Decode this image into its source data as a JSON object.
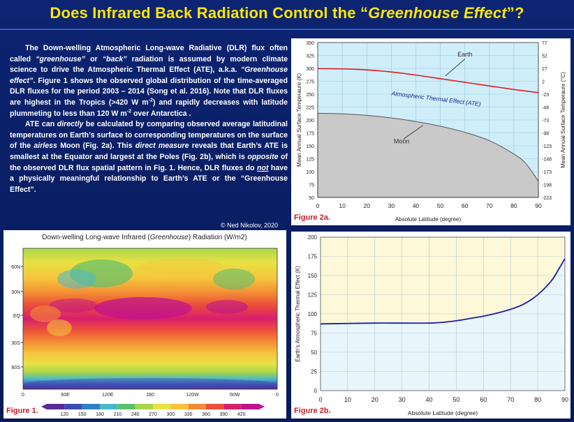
{
  "title": "Does Infrared Back Radiation Control the “Greenhouse Effect”?",
  "title_parts": {
    "a": "Does Infrared Back Radiation Control the “",
    "b": "Greenhouse Effect",
    "c": "”?"
  },
  "text": {
    "p1": [
      {
        "t": "The Down-welling Atmospheric Long-wave Radiative (DLR) flux often called "
      },
      {
        "t": "“greenhouse”",
        "s": "i"
      },
      {
        "t": " or "
      },
      {
        "t": "“back”",
        "s": "i"
      },
      {
        "t": " radiation is assumed by modern climate science to drive the Atmospheric Thermal Effect (ATE), a.k.a. "
      },
      {
        "t": "“Greenhouse effect”",
        "s": "i"
      },
      {
        "t": ". Figure 1 shows the observed global distribution of the time-averaged DLR fluxes for the period 2003 – 2014 (Song et al. 2016). Note that DLR fluxes are highest in the Tropics (>420 W m"
      },
      {
        "t": "-2",
        "s": "sup"
      },
      {
        "t": ") and rapidly decreases with latitude plummeting to less than 120 W m"
      },
      {
        "t": "-2",
        "s": "sup"
      },
      {
        "t": " over Antarctica ."
      }
    ],
    "p2": [
      {
        "t": "ATE can "
      },
      {
        "t": "directly",
        "s": "i"
      },
      {
        "t": " be calculated by comparing observed average latitudinal temperatures on Earth’s surface to corresponding temperatures on the surface of the "
      },
      {
        "t": "airless",
        "s": "i"
      },
      {
        "t": " Moon (Fig. 2a). This "
      },
      {
        "t": "direct measure",
        "s": "i"
      },
      {
        "t": " reveals that Earth’s ATE is smallest at the Equator and largest at the Poles (Fig. 2b), which is "
      },
      {
        "t": "opposite",
        "s": "i"
      },
      {
        "t": " of the observed DLR flux spatial pattern in Fig. 1. Hence, DLR fluxes do "
      },
      {
        "t": "not",
        "s": "iu"
      },
      {
        "t": " have a physically meaningful relationship to Earth’s ATE or the “Greenhouse Effect”."
      }
    ],
    "copyright": "© Ned Nikolov, 2020"
  },
  "colors": {
    "title": "#ffe600",
    "background": "#0a1f66",
    "caption": "#c0202a",
    "earth_line": "#e0191f",
    "moon_fill": "#c9c9c9",
    "ate_fill": "#cfeefa",
    "ate_line": "#1a1ab8",
    "fig2b_fill": "#fdf8d8"
  },
  "chart_data": [
    {
      "id": "fig2a",
      "caption": "Figure 2a.",
      "type": "area",
      "xlabel": "Absolute Latitude (degree)",
      "ylabel": "Mean Annual Surface Temperaure (K)",
      "y2label": "Mean Annual Surface Temperaure (°C)",
      "xlim": [
        0,
        90
      ],
      "ylim": [
        50,
        350
      ],
      "xticks": [
        0,
        10,
        20,
        30,
        40,
        50,
        60,
        70,
        80,
        90
      ],
      "yticks": [
        50,
        75,
        100,
        125,
        150,
        175,
        200,
        225,
        250,
        275,
        300,
        325,
        350
      ],
      "y2ticks": [
        "-223",
        "-198",
        "-173",
        "-148",
        "-123",
        "-98",
        "-73",
        "-48",
        "-23",
        "2",
        "27",
        "52",
        "77"
      ],
      "grid": true,
      "x": [
        0,
        10,
        20,
        30,
        40,
        50,
        60,
        70,
        80,
        85,
        90
      ],
      "series": [
        {
          "name": "Earth",
          "values": [
            299.5,
            299,
            297,
            293,
            287,
            280,
            273,
            266,
            259,
            256,
            253
          ]
        },
        {
          "name": "Moon",
          "values": [
            213,
            212,
            209,
            204,
            197,
            188,
            176,
            160,
            134,
            115,
            81
          ]
        }
      ],
      "annotations": [
        "Earth",
        "Atmospheric Thermal Effect (ATE)",
        "Moon"
      ]
    },
    {
      "id": "fig2b",
      "caption": "Figure 2b.",
      "type": "line",
      "xlabel": "Absolute Latitude (degree)",
      "ylabel": "Earth's Atmospheric Thermal Effect (K)",
      "xlim": [
        0,
        90
      ],
      "ylim": [
        0,
        200
      ],
      "xticks": [
        0,
        10,
        20,
        30,
        40,
        50,
        60,
        70,
        80,
        90
      ],
      "yticks": [
        0,
        25,
        50,
        75,
        100,
        125,
        150,
        175,
        200
      ],
      "grid": true,
      "x": [
        0,
        10,
        20,
        30,
        40,
        45,
        50,
        55,
        60,
        65,
        70,
        75,
        80,
        85,
        88,
        90
      ],
      "series": [
        {
          "name": "",
          "values": [
            87,
            87.5,
            88,
            88,
            88,
            89,
            91,
            94,
            97,
            101,
            106,
            113,
            125,
            143,
            160,
            172
          ]
        }
      ]
    },
    {
      "id": "fig1",
      "caption": "Figure 1.",
      "type": "heatmap",
      "title_parts": {
        "a": "Down-welling Long-wave Infrared (",
        "b": "Greenhouse",
        "c": ") Radiation (W/m2)"
      },
      "lat_ticks": [
        "60N",
        "30N",
        "EQ",
        "30S",
        "60S"
      ],
      "lon_ticks": [
        "0",
        "60E",
        "120E",
        "180",
        "120W",
        "60W",
        "0"
      ],
      "colorbar_ticks": [
        "120",
        "150",
        "180",
        "210",
        "240",
        "270",
        "300",
        "330",
        "360",
        "390",
        "420"
      ],
      "colorbar_colors": [
        "#5a2a96",
        "#3f4cb4",
        "#2e80c8",
        "#4bb8c8",
        "#5fc06c",
        "#a9d64a",
        "#e8e244",
        "#f6c23c",
        "#f38a34",
        "#ec4f3a",
        "#d91e6e",
        "#c0148c"
      ]
    }
  ]
}
